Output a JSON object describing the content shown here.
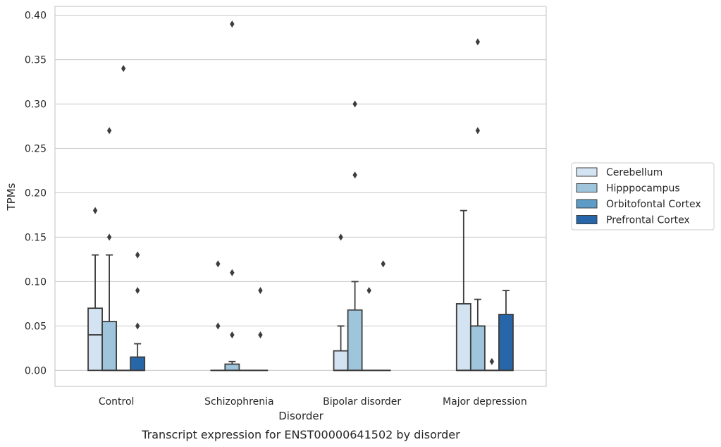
{
  "chart_data": {
    "type": "boxplot",
    "caption": "Transcript expression for ENST00000641502 by disorder",
    "xlabel": "Disorder",
    "ylabel": "TPMs",
    "ylim": [
      -0.018,
      0.41
    ],
    "yticks": [
      "0.00",
      "0.05",
      "0.10",
      "0.15",
      "0.20",
      "0.25",
      "0.30",
      "0.35",
      "0.40"
    ],
    "ytick_values": [
      0,
      0.05,
      0.1,
      0.15,
      0.2,
      0.25,
      0.3,
      0.35,
      0.4
    ],
    "grid": true,
    "legend_position": "right",
    "categories": [
      "Control",
      "Schizophrenia",
      "Bipolar disorder",
      "Major depression"
    ],
    "series": [
      {
        "name": "Cerebellum",
        "color": "#d3e3f1",
        "boxes": [
          {
            "q1": 0,
            "median": 0.04,
            "q3": 0.07,
            "whisker_low": 0,
            "whisker_high": 0.13,
            "outliers": [
              0.18
            ]
          },
          {
            "q1": 0,
            "median": 0,
            "q3": 0,
            "whisker_low": 0,
            "whisker_high": 0,
            "outliers": [
              0.05,
              0.12
            ]
          },
          {
            "q1": 0,
            "median": 0,
            "q3": 0.022,
            "whisker_low": 0,
            "whisker_high": 0.05,
            "outliers": [
              0.15
            ]
          },
          {
            "q1": 0,
            "median": 0,
            "q3": 0.075,
            "whisker_low": 0,
            "whisker_high": 0.18,
            "outliers": []
          }
        ]
      },
      {
        "name": "Hipppocampus",
        "color": "#9ec5dc",
        "boxes": [
          {
            "q1": 0,
            "median": 0,
            "q3": 0.055,
            "whisker_low": 0,
            "whisker_high": 0.13,
            "outliers": [
              0.15,
              0.27
            ]
          },
          {
            "q1": 0,
            "median": 0,
            "q3": 0.007,
            "whisker_low": 0,
            "whisker_high": 0.01,
            "outliers": [
              0.04,
              0.11,
              0.39
            ]
          },
          {
            "q1": 0,
            "median": 0,
            "q3": 0.068,
            "whisker_low": 0,
            "whisker_high": 0.1,
            "outliers": [
              0.22,
              0.3
            ]
          },
          {
            "q1": 0,
            "median": 0,
            "q3": 0.05,
            "whisker_low": 0,
            "whisker_high": 0.08,
            "outliers": [
              0.27,
              0.37
            ]
          }
        ]
      },
      {
        "name": "Orbitofontal Cortex",
        "color": "#5d9cc7",
        "boxes": [
          {
            "q1": 0,
            "median": 0,
            "q3": 0,
            "whisker_low": 0,
            "whisker_high": 0,
            "outliers": [
              0.34
            ]
          },
          {
            "q1": 0,
            "median": 0,
            "q3": 0,
            "whisker_low": 0,
            "whisker_high": 0,
            "outliers": []
          },
          {
            "q1": 0,
            "median": 0,
            "q3": 0,
            "whisker_low": 0,
            "whisker_high": 0,
            "outliers": [
              0.09
            ]
          },
          {
            "q1": 0,
            "median": 0,
            "q3": 0,
            "whisker_low": 0,
            "whisker_high": 0,
            "outliers": [
              0.01
            ]
          }
        ]
      },
      {
        "name": "Prefrontal Cortex",
        "color": "#2766a8",
        "boxes": [
          {
            "q1": 0,
            "median": 0,
            "q3": 0.015,
            "whisker_low": 0,
            "whisker_high": 0.03,
            "outliers": [
              0.05,
              0.09,
              0.13
            ]
          },
          {
            "q1": 0,
            "median": 0,
            "q3": 0,
            "whisker_low": 0,
            "whisker_high": 0,
            "outliers": [
              0.04,
              0.09
            ]
          },
          {
            "q1": 0,
            "median": 0,
            "q3": 0,
            "whisker_low": 0,
            "whisker_high": 0,
            "outliers": [
              0.12
            ]
          },
          {
            "q1": 0,
            "median": 0,
            "q3": 0.063,
            "whisker_low": 0,
            "whisker_high": 0.09,
            "outliers": []
          }
        ]
      }
    ],
    "colors": {
      "grid": "#cccccc",
      "spine": "#cccccc",
      "box_edge": "#3d3d3d",
      "outlier": "#3d3d3d"
    }
  }
}
